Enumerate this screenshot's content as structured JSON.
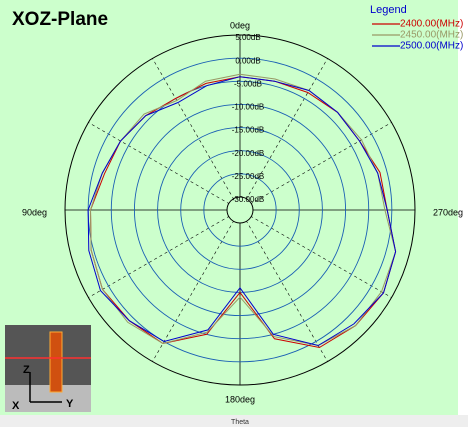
{
  "chart_data": {
    "type": "polar",
    "title": "XOZ-Plane",
    "legend_title": "Legend",
    "theta_label": "Theta",
    "rlim": [
      -30,
      5
    ],
    "rticks": [
      {
        "value": 5,
        "label": "5.00dB"
      },
      {
        "value": 0,
        "label": "0.00dB"
      },
      {
        "value": -5,
        "label": "-5.00dB"
      },
      {
        "value": -10,
        "label": "-10.00dB"
      },
      {
        "value": -15,
        "label": "-15.00dB"
      },
      {
        "value": -20,
        "label": "-20.00dB"
      },
      {
        "value": -25,
        "label": "-25.00dB"
      },
      {
        "value": -30,
        "label": "-30.00dB"
      }
    ],
    "angle_ticks": [
      {
        "value": 0,
        "label": "0deg"
      },
      {
        "value": 90,
        "label": "90deg"
      },
      {
        "value": 180,
        "label": "180deg"
      },
      {
        "value": 270,
        "label": "270deg"
      }
    ],
    "angle_grid": [
      30,
      60,
      120,
      150,
      210,
      240,
      300,
      330
    ],
    "x": [
      0,
      15,
      30,
      45,
      60,
      75,
      90,
      105,
      120,
      135,
      150,
      165,
      180,
      195,
      210,
      225,
      240,
      255,
      270,
      285,
      300,
      315,
      330,
      345
    ],
    "series": [
      {
        "name": "2400.00(MHz)",
        "color": "#cc0000",
        "values": [
          -4,
          -4.5,
          -5,
          -4,
          -3,
          -2.5,
          -0.5,
          0.5,
          1.5,
          1,
          0.5,
          -5,
          -15,
          -4,
          1.5,
          2.5,
          3,
          2,
          -1,
          -1.5,
          -3,
          -3,
          -3.5,
          -4
        ]
      },
      {
        "name": "2450.00(MHz)",
        "color": "#999966",
        "values": [
          -3.5,
          -4,
          -5.5,
          -3.5,
          -3,
          -2,
          -0.5,
          0.5,
          1.5,
          1.5,
          0.5,
          -5.5,
          -14,
          -4.5,
          1,
          2.5,
          2.5,
          2,
          -1.5,
          -2,
          -2.5,
          -3,
          -3,
          -3.5
        ]
      },
      {
        "name": "2500.00(MHz)",
        "color": "#0000cc",
        "values": [
          -4,
          -5,
          -6,
          -4,
          -3,
          -2,
          0,
          1,
          2,
          1,
          0,
          -6,
          -16,
          -5,
          1,
          2,
          3,
          2,
          -1,
          -2,
          -3,
          -3,
          -3,
          -4
        ]
      }
    ]
  },
  "inset": {
    "labels": [
      "Z",
      "Y",
      "X"
    ]
  }
}
